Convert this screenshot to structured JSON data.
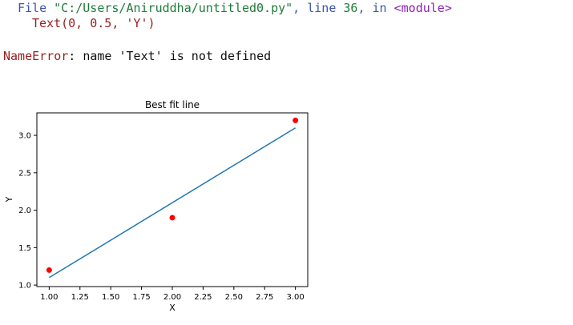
{
  "traceback": {
    "file_keyword": "File",
    "file_path": "\"C:/Users/Aniruddha/untitled0.py\"",
    "comma1": ",",
    "line_keyword": "line",
    "line_number": "36",
    "comma2": ",",
    "in_keyword": "in",
    "module": "<module>",
    "code_func": "Text(0, 0.5, ",
    "code_str": "'Y'",
    "code_close": ")"
  },
  "error": {
    "type": "NameError",
    "colon": ":",
    "message": "name 'Text' is not defined"
  },
  "colors": {
    "line": "#1f77b4",
    "points": "#ff0000",
    "axes": "#000000"
  },
  "chart_data": {
    "type": "scatter",
    "title": "Best fit line",
    "xlabel": "X",
    "ylabel": "Y",
    "xlim": [
      0.9,
      3.1
    ],
    "ylim": [
      0.98,
      3.3
    ],
    "xticks": [
      "1.00",
      "1.25",
      "1.50",
      "1.75",
      "2.00",
      "2.25",
      "2.50",
      "2.75",
      "3.00"
    ],
    "yticks": [
      "1.0",
      "1.5",
      "2.0",
      "2.5",
      "3.0"
    ],
    "grid": false,
    "series": [
      {
        "kind": "scatter",
        "x": [
          1,
          2,
          3
        ],
        "y": [
          1.2,
          1.9,
          3.2
        ]
      },
      {
        "kind": "line",
        "x": [
          1,
          3
        ],
        "y": [
          1.1,
          3.1
        ]
      }
    ]
  }
}
